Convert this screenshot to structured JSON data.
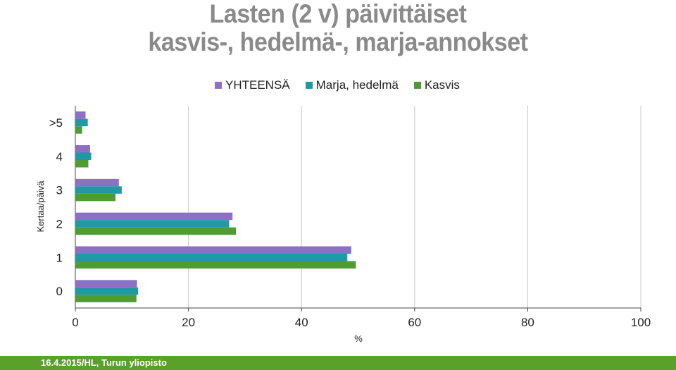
{
  "chart_data": {
    "type": "bar",
    "orientation": "horizontal",
    "title_line1": "Lasten (2 v) päivittäiset",
    "title_line2": "kasvis-, hedelmä-, marja-annokset",
    "categories": [
      ">5",
      "4",
      "3",
      "2",
      "1",
      "0"
    ],
    "series": [
      {
        "name": "YHTEENSÄ",
        "color": "#8e6fc6",
        "values": [
          1.8,
          2.6,
          7.7,
          27.8,
          48.8,
          10.9
        ]
      },
      {
        "name": "Marja, hedelmä",
        "color": "#1f9aa4",
        "values": [
          2.2,
          2.8,
          8.2,
          27.2,
          48.1,
          11.1
        ]
      },
      {
        "name": "Kasvis",
        "color": "#4f9b34",
        "values": [
          1.2,
          2.3,
          7.1,
          28.4,
          49.6,
          10.8
        ]
      }
    ],
    "xlim": [
      0,
      100
    ],
    "xticks": [
      0,
      20,
      40,
      60,
      80,
      100
    ],
    "xlabel": "%",
    "ylabel": "Kertaa/päivä",
    "grid": "vertical",
    "legend": "top"
  },
  "footer": {
    "text": "16.4.2015/HL, Turun yliopisto",
    "color": "#5aa12c"
  }
}
